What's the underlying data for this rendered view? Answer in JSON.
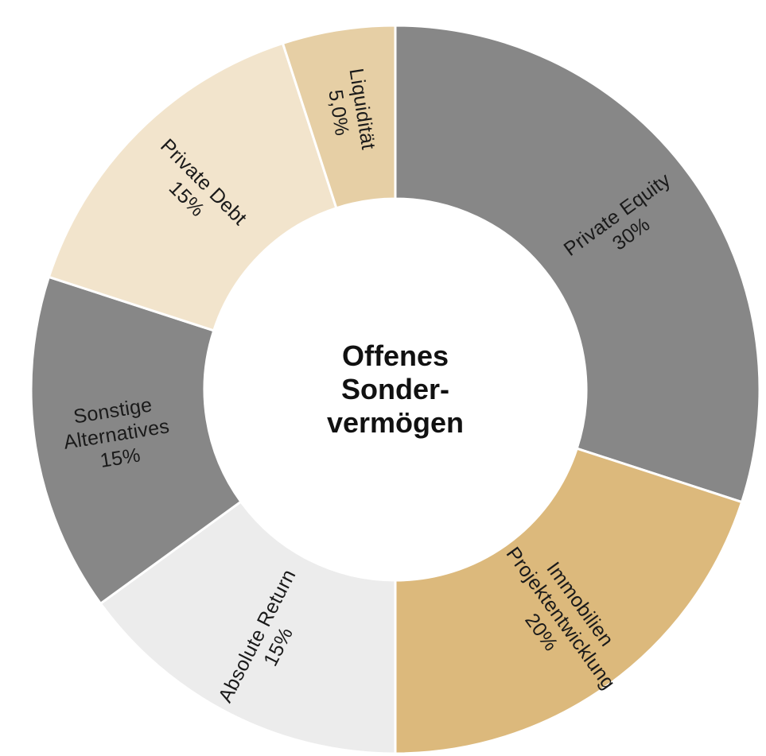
{
  "chart_data": {
    "type": "pie",
    "donut": true,
    "center_label": [
      "Offenes",
      "Sonder-",
      "vermögen"
    ],
    "slices": [
      {
        "label": [
          "Private Equity",
          "30%"
        ],
        "value": 30,
        "color": "#878787"
      },
      {
        "label": [
          "Immobilien",
          "Projektentwicklung",
          "20%"
        ],
        "value": 20,
        "color": "#dcb97c"
      },
      {
        "label": [
          "Absolute Return",
          "15%"
        ],
        "value": 15,
        "color": "#ececec"
      },
      {
        "label": [
          "Sonstige",
          "Alternatives",
          "15%"
        ],
        "value": 15,
        "color": "#878787"
      },
      {
        "label": [
          "Private Debt",
          "15%"
        ],
        "value": 15,
        "color": "#f2e4cc"
      },
      {
        "label": [
          "Liquidität",
          "5,0%"
        ],
        "value": 5,
        "color": "#e6cfa5"
      }
    ]
  }
}
